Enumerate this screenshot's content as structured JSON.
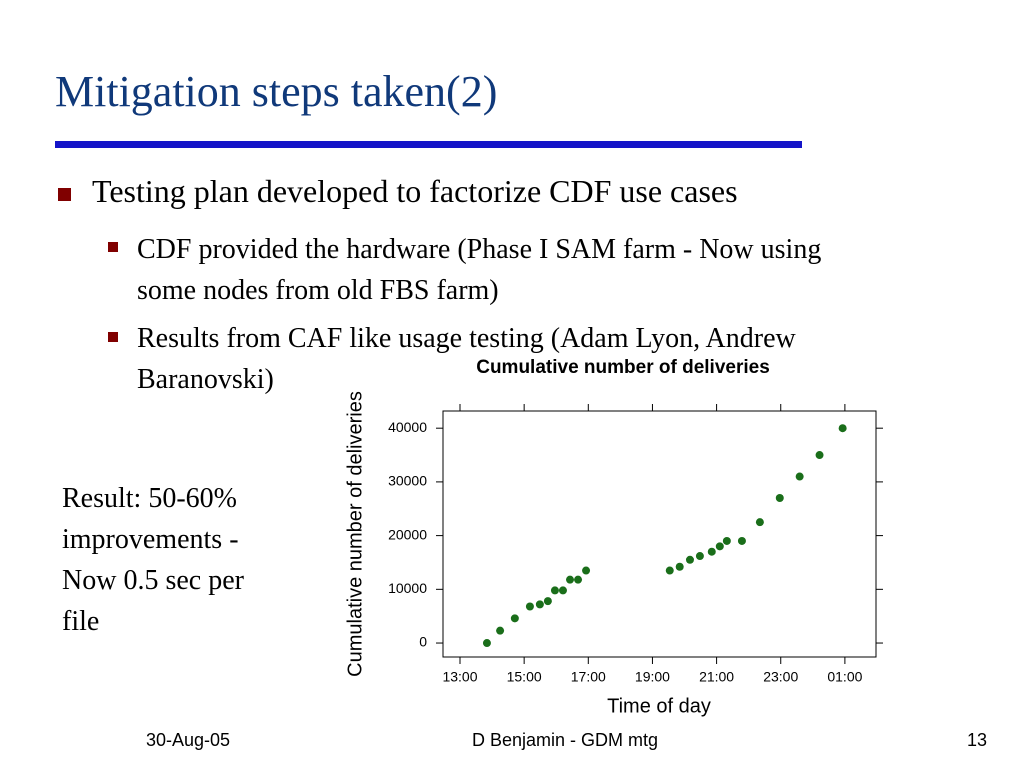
{
  "slide": {
    "title": "Mitigation steps taken(2)",
    "bullet": "Testing plan developed to factorize CDF use cases",
    "sub_bullets": [
      {
        "lines": [
          "CDF provided the hardware (Phase I SAM farm - Now using",
          "some nodes from old FBS farm)"
        ]
      },
      {
        "lines": [
          "Results from CAF like usage testing (Adam Lyon, Andrew",
          "Baranovski)"
        ]
      }
    ],
    "note_lines": [
      "Result: 50-60%",
      "improvements -",
      "Now 0.5 sec  per",
      "file"
    ],
    "footer": {
      "date": "30-Aug-05",
      "center": "D Benjamin - GDM mtg",
      "page": "13"
    }
  },
  "chart_data": {
    "type": "scatter",
    "title": "Cumulative number of deliveries",
    "x_label": "Time of day",
    "y_label": "Cumulative number of deliveries",
    "x": [
      13.84,
      14.25,
      14.71,
      15.18,
      15.49,
      15.74,
      15.96,
      16.21,
      16.43,
      16.68,
      16.93,
      19.54,
      19.85,
      20.17,
      20.48,
      20.85,
      21.1,
      21.32,
      21.79,
      22.35,
      22.97,
      23.59,
      24.21,
      24.93
    ],
    "series": [
      {
        "name": "deliveries",
        "color": "#1a6e1a",
        "values": [
          0,
          2300,
          4600,
          6800,
          7200,
          7800,
          9800,
          9800,
          11800,
          11800,
          13500,
          13500,
          14200,
          15500,
          16200,
          17000,
          18000,
          19000,
          19000,
          22500,
          27000,
          31000,
          35000,
          40000
        ]
      }
    ],
    "xlim": [
      12.47,
      25.97
    ],
    "ylim": [
      -2600,
      43200
    ],
    "xticks": [
      {
        "value": 13,
        "label": "13:00"
      },
      {
        "value": 15,
        "label": "15:00"
      },
      {
        "value": 17,
        "label": "17:00"
      },
      {
        "value": 19,
        "label": "19:00"
      },
      {
        "value": 21,
        "label": "21:00"
      },
      {
        "value": 23,
        "label": "23:00"
      },
      {
        "value": 25,
        "label": "01:00"
      }
    ],
    "yticks": [
      0,
      10000,
      20000,
      30000,
      40000
    ]
  }
}
